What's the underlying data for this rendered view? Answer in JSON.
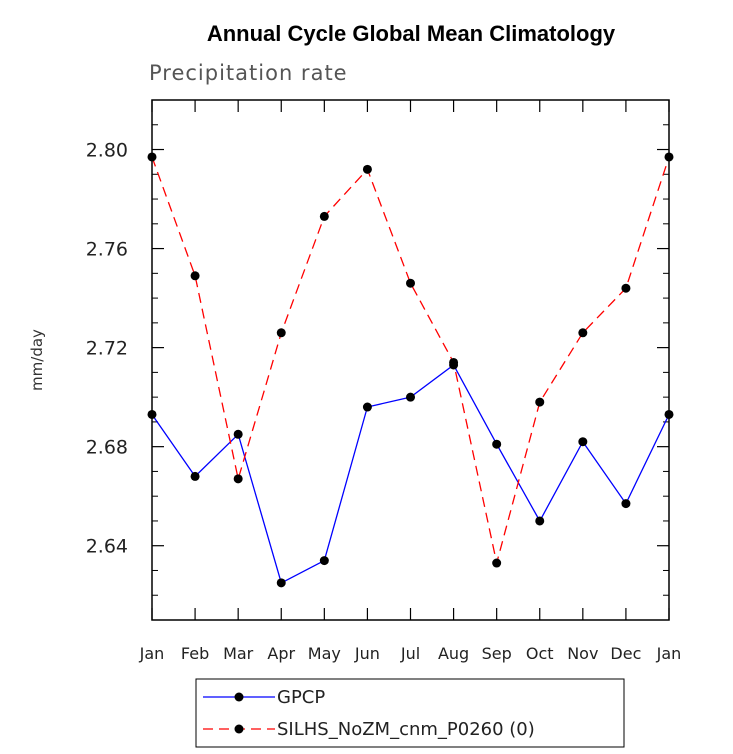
{
  "chart_data": {
    "type": "line",
    "title": "Annual Cycle Global Mean Climatology",
    "subtitle": "Precipitation rate",
    "ylabel": "mm/day",
    "xlabel": "",
    "ylim": [
      2.61,
      2.82
    ],
    "yticks": [
      "2.64",
      "2.68",
      "2.72",
      "2.76",
      "2.80"
    ],
    "categories": [
      "Jan",
      "Feb",
      "Mar",
      "Apr",
      "May",
      "Jun",
      "Jul",
      "Aug",
      "Sep",
      "Oct",
      "Nov",
      "Dec",
      "Jan"
    ],
    "series": [
      {
        "name": "GPCP",
        "color": "#0000ff",
        "dash": "solid",
        "values": [
          2.693,
          2.668,
          2.685,
          2.625,
          2.634,
          2.696,
          2.7,
          2.713,
          2.681,
          2.65,
          2.682,
          2.657,
          2.693
        ]
      },
      {
        "name": "SILHS_NoZM_cnm_P0260 (0)",
        "color": "#ff0000",
        "dash": "dashed",
        "values": [
          2.797,
          2.749,
          2.667,
          2.726,
          2.773,
          2.792,
          2.746,
          2.714,
          2.633,
          2.698,
          2.726,
          2.744,
          2.797
        ]
      }
    ],
    "legend_position": "bottom-left"
  }
}
